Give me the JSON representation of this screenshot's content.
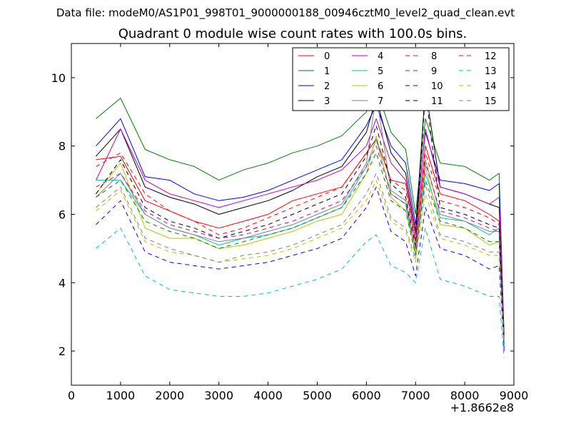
{
  "chart_data": {
    "type": "line",
    "suptitle": "Data file: modeM0/AS1P01_998T01_9000000188_00946cztM0_level2_quad_clean.evt",
    "title": "Quadrant 0 module wise count rates with 100.0s bins.",
    "xlabel": "",
    "ylabel": "",
    "xlim": [
      0,
      9000
    ],
    "ylim": [
      1,
      11
    ],
    "x_offset_label": "+1.8662e8",
    "xticks": [
      0,
      1000,
      2000,
      3000,
      4000,
      5000,
      6000,
      7000,
      8000,
      9000
    ],
    "xtick_labels": [
      "0",
      "1000",
      "2000",
      "3000",
      "4000",
      "5000",
      "6000",
      "7000",
      "8000",
      "9000"
    ],
    "yticks": [
      2,
      4,
      6,
      8,
      10
    ],
    "ytick_labels": [
      "2",
      "4",
      "6",
      "8",
      "10"
    ],
    "legend_position": "top-right",
    "legend_columns": 4,
    "x": [
      500,
      1000,
      1500,
      2000,
      2500,
      3000,
      3500,
      4000,
      4500,
      5000,
      5500,
      6000,
      6200,
      6500,
      6800,
      7000,
      7200,
      7500,
      8000,
      8500,
      8700,
      8800
    ],
    "series": [
      {
        "name": "0",
        "color": "#ff0000",
        "dash": "solid",
        "values": [
          7.6,
          7.7,
          6.4,
          6.1,
          5.8,
          5.6,
          5.8,
          6.0,
          6.4,
          6.6,
          6.8,
          7.8,
          8.2,
          7.0,
          6.9,
          5.2,
          8.0,
          6.6,
          6.4,
          6.0,
          5.8,
          2.6
        ]
      },
      {
        "name": "1",
        "color": "#008000",
        "dash": "solid",
        "values": [
          8.8,
          9.4,
          7.9,
          7.6,
          7.4,
          7.0,
          7.3,
          7.5,
          7.8,
          8.0,
          8.3,
          9.0,
          9.7,
          8.4,
          7.9,
          6.0,
          8.8,
          7.5,
          7.4,
          7.0,
          7.2,
          2.5
        ]
      },
      {
        "name": "2",
        "color": "#0000ff",
        "dash": "solid",
        "values": [
          8.0,
          8.8,
          7.1,
          7.0,
          6.6,
          6.4,
          6.5,
          6.7,
          7.0,
          7.3,
          7.6,
          8.6,
          9.2,
          8.0,
          7.5,
          5.7,
          8.4,
          7.0,
          6.9,
          6.7,
          6.9,
          2.0
        ]
      },
      {
        "name": "3",
        "color": "#000000",
        "dash": "solid",
        "values": [
          7.7,
          8.5,
          6.8,
          6.5,
          6.3,
          6.0,
          6.2,
          6.4,
          6.7,
          7.1,
          7.4,
          8.4,
          9.4,
          7.8,
          7.2,
          5.5,
          9.7,
          6.8,
          6.6,
          6.3,
          6.2,
          2.4
        ]
      },
      {
        "name": "4",
        "color": "#bf00bf",
        "dash": "solid",
        "values": [
          7.0,
          8.5,
          7.0,
          6.6,
          6.4,
          6.2,
          6.4,
          6.6,
          6.8,
          7.0,
          7.3,
          8.0,
          8.8,
          7.5,
          7.0,
          5.4,
          8.5,
          6.8,
          6.6,
          6.3,
          6.5,
          2.3
        ]
      },
      {
        "name": "5",
        "color": "#00bfbf",
        "dash": "solid",
        "values": [
          7.0,
          7.0,
          6.0,
          5.6,
          5.4,
          5.1,
          5.3,
          5.4,
          5.6,
          5.9,
          6.2,
          7.4,
          8.2,
          6.6,
          6.3,
          4.8,
          7.2,
          5.9,
          5.8,
          5.4,
          5.6,
          2.2
        ]
      },
      {
        "name": "6",
        "color": "#bfbf00",
        "dash": "solid",
        "values": [
          6.6,
          7.5,
          5.6,
          5.3,
          5.3,
          5.0,
          5.1,
          5.3,
          5.5,
          5.8,
          6.0,
          7.2,
          8.3,
          6.5,
          6.1,
          4.9,
          7.4,
          5.7,
          5.6,
          5.1,
          5.2,
          2.3
        ]
      },
      {
        "name": "7",
        "color": "#808080",
        "dash": "solid",
        "values": [
          6.5,
          7.2,
          6.0,
          5.6,
          5.4,
          5.2,
          5.3,
          5.5,
          5.7,
          6.0,
          6.3,
          7.5,
          9.5,
          6.7,
          6.4,
          5.0,
          7.6,
          6.0,
          5.8,
          5.5,
          5.5,
          2.4
        ]
      },
      {
        "name": "8",
        "color": "#ff0000",
        "dash": "dashed",
        "values": [
          7.4,
          7.8,
          6.6,
          6.1,
          5.8,
          5.4,
          5.6,
          5.9,
          6.2,
          6.5,
          6.8,
          7.8,
          8.2,
          7.0,
          6.7,
          5.2,
          7.8,
          6.4,
          6.2,
          5.9,
          5.7,
          2.5
        ]
      },
      {
        "name": "9",
        "color": "#008000",
        "dash": "dashed",
        "values": [
          6.5,
          7.0,
          5.8,
          5.5,
          5.3,
          5.0,
          5.2,
          5.4,
          5.6,
          5.9,
          6.2,
          7.2,
          7.8,
          6.4,
          6.1,
          4.8,
          7.0,
          5.8,
          5.6,
          5.2,
          5.2,
          2.2
        ]
      },
      {
        "name": "10",
        "color": "#0000ff",
        "dash": "dashed",
        "values": [
          5.7,
          6.4,
          4.9,
          4.6,
          4.5,
          4.4,
          4.5,
          4.6,
          4.8,
          5.0,
          5.3,
          6.2,
          6.8,
          5.5,
          5.2,
          4.2,
          6.2,
          5.0,
          4.8,
          4.4,
          4.5,
          2.1
        ]
      },
      {
        "name": "11",
        "color": "#000000",
        "dash": "dashed",
        "values": [
          6.6,
          7.6,
          6.2,
          5.8,
          5.6,
          5.3,
          5.5,
          5.7,
          6.0,
          6.3,
          6.6,
          7.7,
          8.6,
          6.9,
          6.5,
          5.1,
          9.6,
          6.2,
          6.0,
          5.7,
          5.6,
          2.4
        ]
      },
      {
        "name": "12",
        "color": "#bf00bf",
        "dash": "dashed",
        "values": [
          6.8,
          7.2,
          6.1,
          5.7,
          5.5,
          5.3,
          5.4,
          5.6,
          5.8,
          6.1,
          6.4,
          7.4,
          8.0,
          6.6,
          6.3,
          5.0,
          7.5,
          6.1,
          5.9,
          5.6,
          5.5,
          2.3
        ]
      },
      {
        "name": "13",
        "color": "#00bfbf",
        "dash": "dashed",
        "values": [
          5.0,
          5.6,
          4.2,
          3.8,
          3.7,
          3.6,
          3.6,
          3.7,
          3.9,
          4.1,
          4.4,
          5.2,
          5.4,
          4.5,
          4.3,
          4.0,
          5.6,
          4.1,
          3.9,
          3.6,
          3.6,
          1.8
        ]
      },
      {
        "name": "14",
        "color": "#bfbf00",
        "dash": "dashed",
        "values": [
          6.1,
          6.7,
          5.2,
          4.9,
          4.8,
          4.6,
          4.7,
          4.8,
          5.0,
          5.3,
          5.6,
          6.4,
          7.0,
          5.8,
          5.5,
          4.6,
          6.6,
          5.3,
          5.1,
          4.8,
          4.8,
          2.2
        ]
      },
      {
        "name": "15",
        "color": "#808080",
        "dash": "dashed",
        "values": [
          6.2,
          6.8,
          5.3,
          5.0,
          4.8,
          4.6,
          4.8,
          4.9,
          5.1,
          5.4,
          5.7,
          6.6,
          7.2,
          5.9,
          5.6,
          4.7,
          6.9,
          5.4,
          5.2,
          4.9,
          4.9,
          2.3
        ]
      }
    ]
  }
}
